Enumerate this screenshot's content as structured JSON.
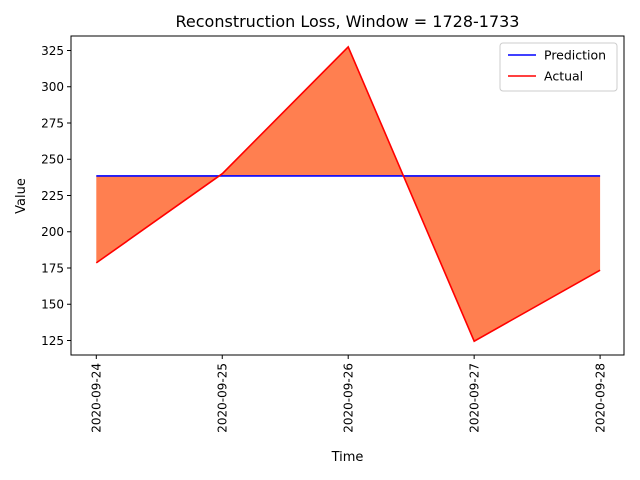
{
  "chart_data": {
    "type": "line",
    "title": "Reconstruction Loss, Window = 1728-1733",
    "xlabel": "Time",
    "ylabel": "Value",
    "categories": [
      "2020-09-24",
      "2020-09-25",
      "2020-09-26",
      "2020-09-27",
      "2020-09-28"
    ],
    "ylim": [
      115,
      335
    ],
    "yticks": [
      125,
      150,
      175,
      200,
      225,
      250,
      275,
      300,
      325
    ],
    "series": [
      {
        "name": "Prediction",
        "color": "#0000ff",
        "values": [
          238.5,
          238.5,
          238.5,
          238.5,
          238.5
        ]
      },
      {
        "name": "Actual",
        "color": "#ff0000",
        "values": [
          178.5,
          240.0,
          327.5,
          124.5,
          173.5
        ]
      }
    ],
    "fill_between": {
      "color": "#ff7f50",
      "between": [
        "Prediction",
        "Actual"
      ]
    },
    "legend": "top-right",
    "grid": false
  }
}
